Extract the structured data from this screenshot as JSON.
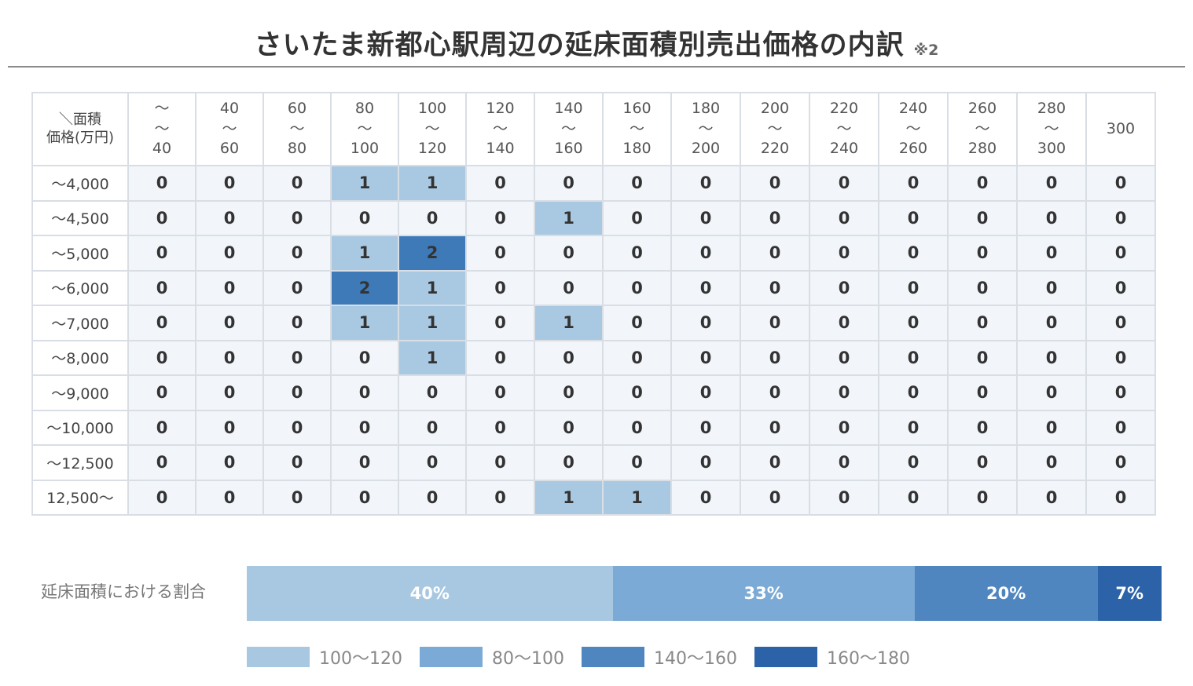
{
  "title": "さいたま新都心駅周辺の延床面積別売出価格の内訳",
  "title_note": "※2",
  "chart_data": [
    {
      "type": "heatmap",
      "corner_label_top": "＼面積",
      "corner_label_bottom": "価格(万円)",
      "columns": [
        {
          "top": "～",
          "bottom": "40"
        },
        {
          "top": "40",
          "bottom": "60"
        },
        {
          "top": "60",
          "bottom": "80"
        },
        {
          "top": "80",
          "bottom": "100"
        },
        {
          "top": "100",
          "bottom": "120"
        },
        {
          "top": "120",
          "bottom": "140"
        },
        {
          "top": "140",
          "bottom": "160"
        },
        {
          "top": "160",
          "bottom": "180"
        },
        {
          "top": "180",
          "bottom": "200"
        },
        {
          "top": "200",
          "bottom": "220"
        },
        {
          "top": "220",
          "bottom": "240"
        },
        {
          "top": "240",
          "bottom": "260"
        },
        {
          "top": "260",
          "bottom": "280"
        },
        {
          "top": "280",
          "bottom": "300"
        },
        {
          "top": "300",
          "bottom": ""
        }
      ],
      "column_separator": "～",
      "rows": [
        "～4,000",
        "～4,500",
        "～5,000",
        "～6,000",
        "～7,000",
        "～8,000",
        "～9,000",
        "～10,000",
        "～12,500",
        "12,500～"
      ],
      "values": [
        [
          0,
          0,
          0,
          1,
          1,
          0,
          0,
          0,
          0,
          0,
          0,
          0,
          0,
          0,
          0
        ],
        [
          0,
          0,
          0,
          0,
          0,
          0,
          1,
          0,
          0,
          0,
          0,
          0,
          0,
          0,
          0
        ],
        [
          0,
          0,
          0,
          1,
          2,
          0,
          0,
          0,
          0,
          0,
          0,
          0,
          0,
          0,
          0
        ],
        [
          0,
          0,
          0,
          2,
          1,
          0,
          0,
          0,
          0,
          0,
          0,
          0,
          0,
          0,
          0
        ],
        [
          0,
          0,
          0,
          1,
          1,
          0,
          1,
          0,
          0,
          0,
          0,
          0,
          0,
          0,
          0
        ],
        [
          0,
          0,
          0,
          0,
          1,
          0,
          0,
          0,
          0,
          0,
          0,
          0,
          0,
          0,
          0
        ],
        [
          0,
          0,
          0,
          0,
          0,
          0,
          0,
          0,
          0,
          0,
          0,
          0,
          0,
          0,
          0
        ],
        [
          0,
          0,
          0,
          0,
          0,
          0,
          0,
          0,
          0,
          0,
          0,
          0,
          0,
          0,
          0
        ],
        [
          0,
          0,
          0,
          0,
          0,
          0,
          0,
          0,
          0,
          0,
          0,
          0,
          0,
          0,
          0
        ],
        [
          0,
          0,
          0,
          0,
          0,
          0,
          1,
          1,
          0,
          0,
          0,
          0,
          0,
          0,
          0
        ]
      ],
      "colors": {
        "0": "#f2f6fb",
        "1": "#a9c9e3",
        "2": "#3e7ab8"
      }
    },
    {
      "type": "bar",
      "orientation": "horizontal",
      "stacked": true,
      "label": "延床面積における割合",
      "segments": [
        {
          "name": "100～120",
          "value": 40,
          "label": "40%",
          "color": "#a8c8e2"
        },
        {
          "name": "80～100",
          "value": 33,
          "label": "33%",
          "color": "#7aaad5"
        },
        {
          "name": "140～160",
          "value": 20,
          "label": "20%",
          "color": "#4f86c0"
        },
        {
          "name": "160～180",
          "value": 7,
          "label": "7%",
          "color": "#2c63a8"
        }
      ]
    }
  ]
}
